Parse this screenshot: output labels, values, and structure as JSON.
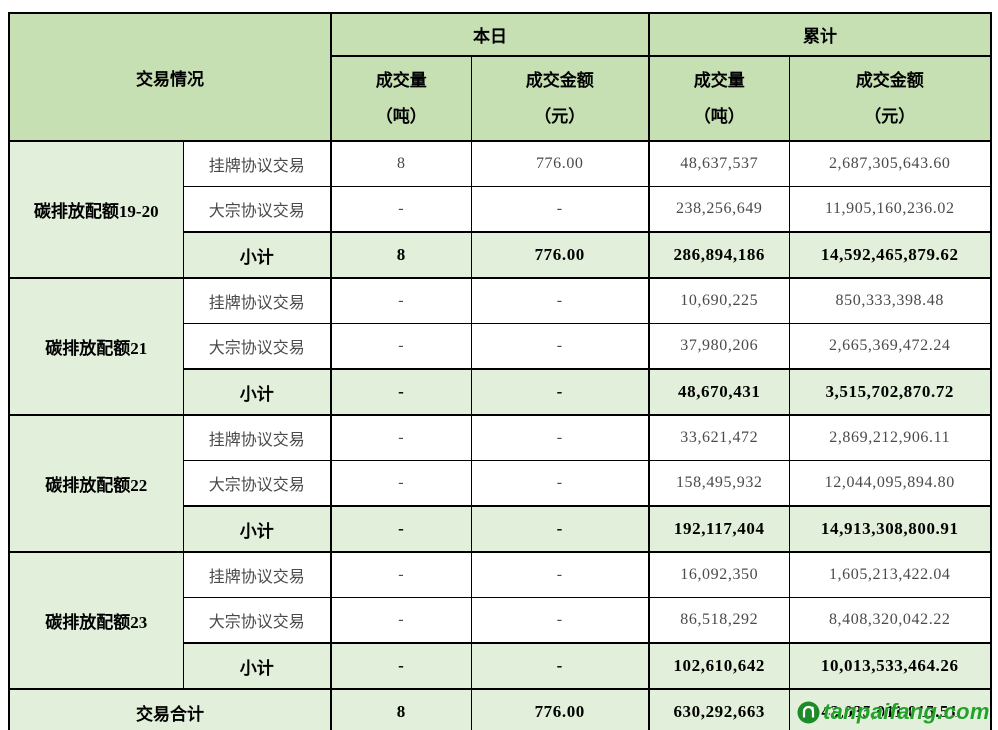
{
  "table": {
    "header": {
      "trading": "交易情况",
      "today": "本日",
      "cumulative": "累计",
      "volume_line1": "成交量",
      "volume_unit": "（吨）",
      "amount_line1": "成交金额",
      "amount_unit": "（元）"
    },
    "groups": [
      {
        "label": "碳排放配额19-20",
        "rows": [
          {
            "label": "挂牌协议交易",
            "is_subtotal": false,
            "today_volume": "8",
            "today_amount": "776.00",
            "cum_volume": "48,637,537",
            "cum_amount": "2,687,305,643.60"
          },
          {
            "label": "大宗协议交易",
            "is_subtotal": false,
            "today_volume": "-",
            "today_amount": "-",
            "cum_volume": "238,256,649",
            "cum_amount": "11,905,160,236.02"
          },
          {
            "label": "小计",
            "is_subtotal": true,
            "today_volume": "8",
            "today_amount": "776.00",
            "cum_volume": "286,894,186",
            "cum_amount": "14,592,465,879.62"
          }
        ]
      },
      {
        "label": "碳排放配额21",
        "rows": [
          {
            "label": "挂牌协议交易",
            "is_subtotal": false,
            "today_volume": "-",
            "today_amount": "-",
            "cum_volume": "10,690,225",
            "cum_amount": "850,333,398.48"
          },
          {
            "label": "大宗协议交易",
            "is_subtotal": false,
            "today_volume": "-",
            "today_amount": "-",
            "cum_volume": "37,980,206",
            "cum_amount": "2,665,369,472.24"
          },
          {
            "label": "小计",
            "is_subtotal": true,
            "today_volume": "-",
            "today_amount": "-",
            "cum_volume": "48,670,431",
            "cum_amount": "3,515,702,870.72"
          }
        ]
      },
      {
        "label": "碳排放配额22",
        "rows": [
          {
            "label": "挂牌协议交易",
            "is_subtotal": false,
            "today_volume": "-",
            "today_amount": "-",
            "cum_volume": "33,621,472",
            "cum_amount": "2,869,212,906.11"
          },
          {
            "label": "大宗协议交易",
            "is_subtotal": false,
            "today_volume": "-",
            "today_amount": "-",
            "cum_volume": "158,495,932",
            "cum_amount": "12,044,095,894.80"
          },
          {
            "label": "小计",
            "is_subtotal": true,
            "today_volume": "-",
            "today_amount": "-",
            "cum_volume": "192,117,404",
            "cum_amount": "14,913,308,800.91"
          }
        ]
      },
      {
        "label": "碳排放配额23",
        "rows": [
          {
            "label": "挂牌协议交易",
            "is_subtotal": false,
            "today_volume": "-",
            "today_amount": "-",
            "cum_volume": "16,092,350",
            "cum_amount": "1,605,213,422.04"
          },
          {
            "label": "大宗协议交易",
            "is_subtotal": false,
            "today_volume": "-",
            "today_amount": "-",
            "cum_volume": "86,518,292",
            "cum_amount": "8,408,320,042.22"
          },
          {
            "label": "小计",
            "is_subtotal": true,
            "today_volume": "-",
            "today_amount": "-",
            "cum_volume": "102,610,642",
            "cum_amount": "10,013,533,464.26"
          }
        ]
      }
    ],
    "total": {
      "label": "交易合计",
      "today_volume": "8",
      "today_amount": "776.00",
      "cum_volume": "630,292,663",
      "cum_amount": "43,035,011,015.51"
    }
  },
  "watermark": {
    "text": "tanpaifang.com"
  },
  "colors": {
    "header_bg": "#c6e0b4",
    "highlight_bg": "#e2efda",
    "border": "#000000",
    "logo_green": "#23a228"
  }
}
